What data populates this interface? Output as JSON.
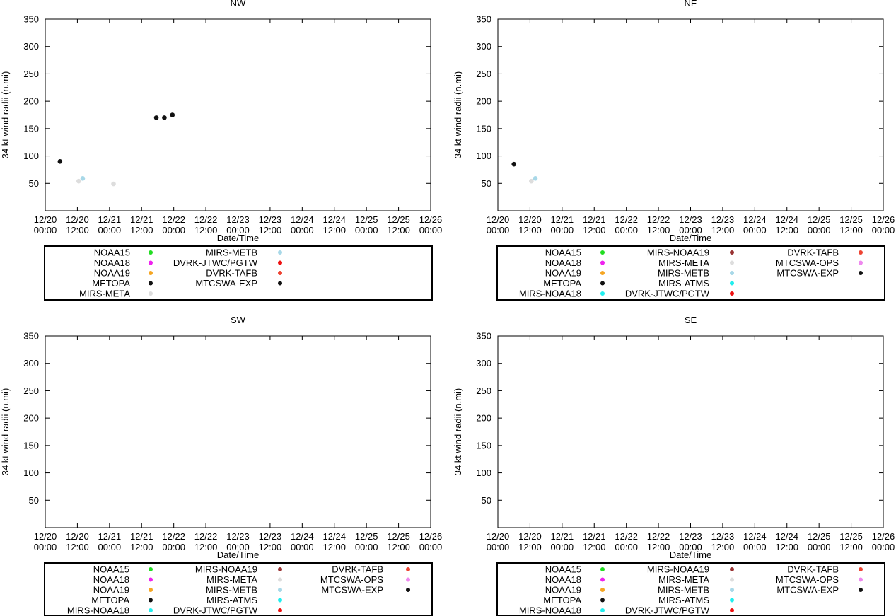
{
  "chart_data": [
    {
      "type": "scatter",
      "title": "NW",
      "xlabel": "Date/Time",
      "ylabel": "34 kt wind radii (n.mi)",
      "ylim": [
        0,
        350
      ],
      "yticks": [
        50,
        100,
        150,
        200,
        250,
        300,
        350
      ],
      "xlim": [
        0,
        144
      ],
      "xticks": [
        {
          "t": 0,
          "date": "12/20",
          "time": "00:00"
        },
        {
          "t": 12,
          "date": "12/20",
          "time": "12:00"
        },
        {
          "t": 24,
          "date": "12/21",
          "time": "00:00"
        },
        {
          "t": 36,
          "date": "12/21",
          "time": "12:00"
        },
        {
          "t": 48,
          "date": "12/22",
          "time": "00:00"
        },
        {
          "t": 60,
          "date": "12/22",
          "time": "12:00"
        },
        {
          "t": 72,
          "date": "12/23",
          "time": "00:00"
        },
        {
          "t": 84,
          "date": "12/23",
          "time": "12:00"
        },
        {
          "t": 96,
          "date": "12/24",
          "time": "00:00"
        },
        {
          "t": 108,
          "date": "12/24",
          "time": "12:00"
        },
        {
          "t": 120,
          "date": "12/25",
          "time": "00:00"
        },
        {
          "t": 132,
          "date": "12/25",
          "time": "12:00"
        },
        {
          "t": 144,
          "date": "12/26",
          "time": "00:00"
        }
      ],
      "legend": [
        {
          "name": "NOAA15",
          "color": "#22dd22"
        },
        {
          "name": "NOAA18",
          "color": "#ee22ee"
        },
        {
          "name": "NOAA19",
          "color": "#f5a623"
        },
        {
          "name": "METOPA",
          "color": "#111111"
        },
        {
          "name": "MIRS-META",
          "color": "#dddddd"
        },
        {
          "name": "MIRS-METB",
          "color": "#a8d8e8"
        },
        {
          "name": "DVRK-JTWC/PGTW",
          "color": "#ee1111"
        },
        {
          "name": "DVRK-TAFB",
          "color": "#ee4433"
        },
        {
          "name": "MTCSWA-EXP",
          "color": "#111111"
        }
      ],
      "series": [
        {
          "name": "MTCSWA-EXP",
          "color": "#111111",
          "points": [
            [
              5.5,
              90
            ],
            [
              41.5,
              170
            ],
            [
              44.5,
              170
            ],
            [
              47.5,
              175
            ]
          ]
        },
        {
          "name": "MIRS-META",
          "color": "#dddddd",
          "points": [
            [
              12.5,
              54
            ],
            [
              25.5,
              49
            ]
          ]
        },
        {
          "name": "MIRS-METB",
          "color": "#a8d8e8",
          "points": [
            [
              14,
              59
            ]
          ]
        }
      ]
    },
    {
      "type": "scatter",
      "title": "NE",
      "xlabel": "Date/Time",
      "ylabel": "34 kt wind radii (n.mi)",
      "ylim": [
        0,
        350
      ],
      "yticks": [
        50,
        100,
        150,
        200,
        250,
        300,
        350
      ],
      "xlim": [
        0,
        144
      ],
      "xticks": [
        {
          "t": 0,
          "date": "12/20",
          "time": "00:00"
        },
        {
          "t": 12,
          "date": "12/20",
          "time": "12:00"
        },
        {
          "t": 24,
          "date": "12/21",
          "time": "00:00"
        },
        {
          "t": 36,
          "date": "12/21",
          "time": "12:00"
        },
        {
          "t": 48,
          "date": "12/22",
          "time": "00:00"
        },
        {
          "t": 60,
          "date": "12/22",
          "time": "12:00"
        },
        {
          "t": 72,
          "date": "12/23",
          "time": "00:00"
        },
        {
          "t": 84,
          "date": "12/23",
          "time": "12:00"
        },
        {
          "t": 96,
          "date": "12/24",
          "time": "00:00"
        },
        {
          "t": 108,
          "date": "12/24",
          "time": "12:00"
        },
        {
          "t": 120,
          "date": "12/25",
          "time": "00:00"
        },
        {
          "t": 132,
          "date": "12/25",
          "time": "12:00"
        },
        {
          "t": 144,
          "date": "12/26",
          "time": "00:00"
        }
      ],
      "legend": [
        {
          "name": "NOAA15",
          "color": "#22dd22"
        },
        {
          "name": "NOAA18",
          "color": "#ee22ee"
        },
        {
          "name": "NOAA19",
          "color": "#f5a623"
        },
        {
          "name": "METOPA",
          "color": "#111111"
        },
        {
          "name": "MIRS-NOAA18",
          "color": "#22eeee"
        },
        {
          "name": "MIRS-NOAA19",
          "color": "#993333"
        },
        {
          "name": "MIRS-META",
          "color": "#dddddd"
        },
        {
          "name": "MIRS-METB",
          "color": "#a8d8e8"
        },
        {
          "name": "MIRS-ATMS",
          "color": "#22eeee"
        },
        {
          "name": "DVRK-JTWC/PGTW",
          "color": "#ee1111"
        },
        {
          "name": "DVRK-TAFB",
          "color": "#ee4433"
        },
        {
          "name": "MTCSWA-OPS",
          "color": "#ee88ee"
        },
        {
          "name": "MTCSWA-EXP",
          "color": "#111111"
        }
      ],
      "series": [
        {
          "name": "MTCSWA-EXP",
          "color": "#111111",
          "points": [
            [
              6,
              85
            ]
          ]
        },
        {
          "name": "MIRS-META",
          "color": "#dddddd",
          "points": [
            [
              12.5,
              54
            ]
          ]
        },
        {
          "name": "MIRS-METB",
          "color": "#a8d8e8",
          "points": [
            [
              14,
              59
            ]
          ]
        }
      ]
    },
    {
      "type": "scatter",
      "title": "SW",
      "xlabel": "Date/Time",
      "ylabel": "34 kt wind radii (n.mi)",
      "ylim": [
        0,
        350
      ],
      "yticks": [
        50,
        100,
        150,
        200,
        250,
        300,
        350
      ],
      "xlim": [
        0,
        144
      ],
      "xticks": [
        {
          "t": 0,
          "date": "12/20",
          "time": "00:00"
        },
        {
          "t": 12,
          "date": "12/20",
          "time": "12:00"
        },
        {
          "t": 24,
          "date": "12/21",
          "time": "00:00"
        },
        {
          "t": 36,
          "date": "12/21",
          "time": "12:00"
        },
        {
          "t": 48,
          "date": "12/22",
          "time": "00:00"
        },
        {
          "t": 60,
          "date": "12/22",
          "time": "12:00"
        },
        {
          "t": 72,
          "date": "12/23",
          "time": "00:00"
        },
        {
          "t": 84,
          "date": "12/23",
          "time": "12:00"
        },
        {
          "t": 96,
          "date": "12/24",
          "time": "00:00"
        },
        {
          "t": 108,
          "date": "12/24",
          "time": "12:00"
        },
        {
          "t": 120,
          "date": "12/25",
          "time": "00:00"
        },
        {
          "t": 132,
          "date": "12/25",
          "time": "12:00"
        },
        {
          "t": 144,
          "date": "12/26",
          "time": "00:00"
        }
      ],
      "legend": [
        {
          "name": "NOAA15",
          "color": "#22dd22"
        },
        {
          "name": "NOAA18",
          "color": "#ee22ee"
        },
        {
          "name": "NOAA19",
          "color": "#f5a623"
        },
        {
          "name": "METOPA",
          "color": "#111111"
        },
        {
          "name": "MIRS-NOAA18",
          "color": "#22eeee"
        },
        {
          "name": "MIRS-NOAA19",
          "color": "#993333"
        },
        {
          "name": "MIRS-META",
          "color": "#dddddd"
        },
        {
          "name": "MIRS-METB",
          "color": "#a8d8e8"
        },
        {
          "name": "MIRS-ATMS",
          "color": "#22eeee"
        },
        {
          "name": "DVRK-JTWC/PGTW",
          "color": "#ee1111"
        },
        {
          "name": "DVRK-TAFB",
          "color": "#ee4433"
        },
        {
          "name": "MTCSWA-OPS",
          "color": "#ee88ee"
        },
        {
          "name": "MTCSWA-EXP",
          "color": "#111111"
        }
      ],
      "series": []
    },
    {
      "type": "scatter",
      "title": "SE",
      "xlabel": "Date/Time",
      "ylabel": "34 kt wind radii (n.mi)",
      "ylim": [
        0,
        350
      ],
      "yticks": [
        50,
        100,
        150,
        200,
        250,
        300,
        350
      ],
      "xlim": [
        0,
        144
      ],
      "xticks": [
        {
          "t": 0,
          "date": "12/20",
          "time": "00:00"
        },
        {
          "t": 12,
          "date": "12/20",
          "time": "12:00"
        },
        {
          "t": 24,
          "date": "12/21",
          "time": "00:00"
        },
        {
          "t": 36,
          "date": "12/21",
          "time": "12:00"
        },
        {
          "t": 48,
          "date": "12/22",
          "time": "00:00"
        },
        {
          "t": 60,
          "date": "12/22",
          "time": "12:00"
        },
        {
          "t": 72,
          "date": "12/23",
          "time": "00:00"
        },
        {
          "t": 84,
          "date": "12/23",
          "time": "12:00"
        },
        {
          "t": 96,
          "date": "12/24",
          "time": "00:00"
        },
        {
          "t": 108,
          "date": "12/24",
          "time": "12:00"
        },
        {
          "t": 120,
          "date": "12/25",
          "time": "00:00"
        },
        {
          "t": 132,
          "date": "12/25",
          "time": "12:00"
        },
        {
          "t": 144,
          "date": "12/26",
          "time": "00:00"
        }
      ],
      "legend": [
        {
          "name": "NOAA15",
          "color": "#22dd22"
        },
        {
          "name": "NOAA18",
          "color": "#ee22ee"
        },
        {
          "name": "NOAA19",
          "color": "#f5a623"
        },
        {
          "name": "METOPA",
          "color": "#111111"
        },
        {
          "name": "MIRS-NOAA18",
          "color": "#22eeee"
        },
        {
          "name": "MIRS-NOAA19",
          "color": "#993333"
        },
        {
          "name": "MIRS-META",
          "color": "#dddddd"
        },
        {
          "name": "MIRS-METB",
          "color": "#a8d8e8"
        },
        {
          "name": "MIRS-ATMS",
          "color": "#22eeee"
        },
        {
          "name": "DVRK-JTWC/PGTW",
          "color": "#ee1111"
        },
        {
          "name": "DVRK-TAFB",
          "color": "#ee4433"
        },
        {
          "name": "MTCSWA-OPS",
          "color": "#ee88ee"
        },
        {
          "name": "MTCSWA-EXP",
          "color": "#111111"
        }
      ],
      "series": []
    }
  ]
}
